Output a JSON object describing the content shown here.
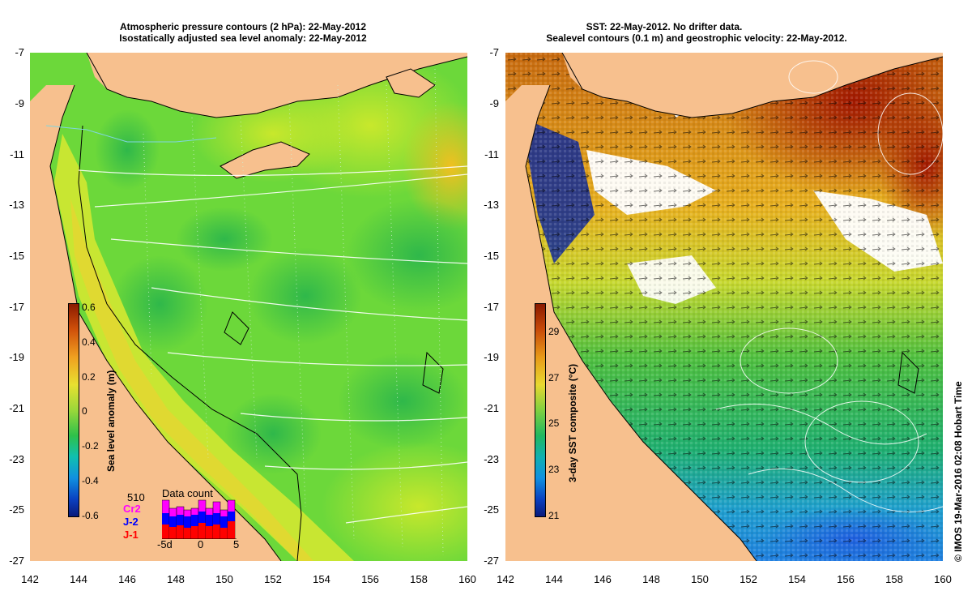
{
  "left_panel": {
    "title_line1": "Atmospheric pressure contours (2 hPa): 22-May-2012",
    "title_line2": "Isostatically adjusted sea level anomaly: 22-May-2012",
    "colorbar": {
      "label": "Sea level anomaly (m)",
      "ticks": [
        "0.6",
        "0.4",
        "0.2",
        "0",
        "-0.2",
        "-0.4",
        "-0.6"
      ]
    },
    "data_count": {
      "title": "Data count",
      "total": "510",
      "series": [
        {
          "name": "Cr2",
          "color": "#ff00ff"
        },
        {
          "name": "J-2",
          "color": "#0000ff"
        },
        {
          "name": "J-1",
          "color": "#ff0000"
        }
      ],
      "x_ticks": [
        "-5d",
        "0",
        "5"
      ]
    }
  },
  "right_panel": {
    "title_line1": "SST: 22-May-2012. No drifter data.",
    "title_line2": "Sealevel contours (0.1 m) and geostrophic velocity: 22-May-2012.",
    "colorbar": {
      "label": "3-day SST composite (°C)",
      "ticks": [
        "29",
        "27",
        "25",
        "23",
        "21"
      ]
    }
  },
  "lat_ticks": [
    "-7",
    "-9",
    "-11",
    "-13",
    "-15",
    "-17",
    "-19",
    "-21",
    "-23",
    "-25",
    "-27"
  ],
  "lon_ticks": [
    "142",
    "144",
    "146",
    "148",
    "150",
    "152",
    "154",
    "156",
    "158",
    "160"
  ],
  "copyright": "© IMOS 19-Mar-2016 02:08 Hobart Time",
  "colors": {
    "land": "#f7c08e",
    "ocean_green": "#5fd23c",
    "sst_red": "#a21800"
  }
}
